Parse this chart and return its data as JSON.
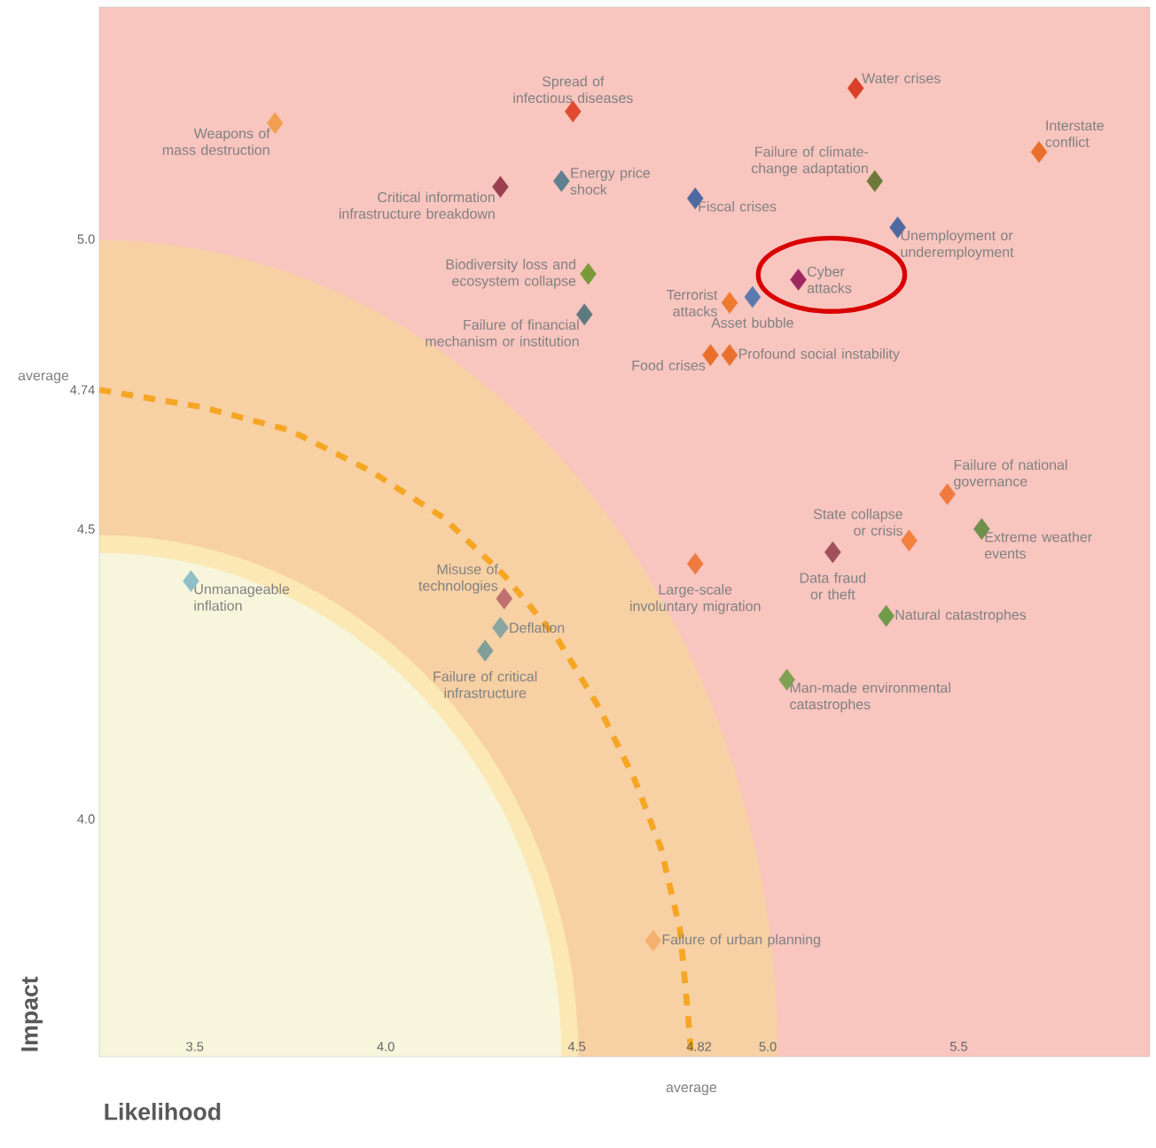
{
  "chart_data": {
    "type": "scatter",
    "xlabel": "Likelihood",
    "ylabel": "Impact",
    "x": [
      3.71,
      4.49,
      5.23,
      5.71,
      5.28,
      4.3,
      4.46,
      4.81,
      5.34,
      4.53,
      5.08,
      4.9,
      4.96,
      4.52,
      4.85,
      4.9,
      5.47,
      5.37,
      5.56,
      4.81,
      5.17,
      5.31,
      5.05,
      3.49,
      4.31,
      4.3,
      4.26,
      4.7
    ],
    "values": [
      5.2,
      5.22,
      5.26,
      5.15,
      5.1,
      5.09,
      5.1,
      5.07,
      5.02,
      4.94,
      4.93,
      4.89,
      4.9,
      4.87,
      4.8,
      4.8,
      4.56,
      4.48,
      4.5,
      4.44,
      4.46,
      4.35,
      4.24,
      4.41,
      4.38,
      4.33,
      4.29,
      3.79
    ],
    "colors": [
      "#f0a050",
      "#e04a30",
      "#d84028",
      "#e8702a",
      "#6b7a3a",
      "#9a4050",
      "#5f8090",
      "#4e6aa0",
      "#4e6aa0",
      "#7a9a3a",
      "#a02860",
      "#ee7a30",
      "#5a7ab0",
      "#5e7a80",
      "#e8702a",
      "#e87030",
      "#ee7a40",
      "#f28040",
      "#6f8f4a",
      "#ee7a40",
      "#a05058",
      "#6f9a4a",
      "#7fa050",
      "#8fc0c8",
      "#c07070",
      "#8aa6a0",
      "#7f9f98",
      "#f5b070"
    ],
    "marker": "diamond",
    "xlim": [
      3.25,
      6.0
    ],
    "ylim": [
      3.59,
      5.4
    ],
    "xticks": [
      3.5,
      {
        "value": 4.0,
        "label": "4.0"
      },
      4.5,
      4.82,
      {
        "value": 5.0,
        "label": "5.0"
      },
      5.5
    ],
    "yticks": [
      {
        "value": 4.0,
        "label": "4.0"
      },
      4.5,
      4.74,
      {
        "value": 5.0,
        "label": "5.0"
      }
    ],
    "series": [
      {
        "type": "line",
        "color": "#f5a623",
        "line_style": "dashed",
        "marker": "none",
        "x": [
          3.25,
          3.52,
          3.75,
          3.96,
          4.15,
          4.31,
          4.45,
          4.56,
          4.65,
          4.72,
          4.77,
          4.79,
          4.8
        ],
        "values": [
          4.74,
          4.71,
          4.67,
          4.6,
          4.52,
          4.42,
          4.31,
          4.19,
          4.07,
          3.95,
          3.81,
          3.67,
          3.59
        ]
      }
    ],
    "annotations": [
      {
        "text": "Weapons of mass destruction",
        "x": 3.71,
        "y": 5.2
      },
      {
        "text": "Spread of infectious diseases",
        "x": 4.49,
        "y": 5.22
      },
      {
        "text": "Water crises",
        "x": 5.23,
        "y": 5.26
      },
      {
        "text": "Interstate conflict",
        "x": 5.71,
        "y": 5.15
      },
      {
        "text": "Failure of climate-change adaptation",
        "x": 5.28,
        "y": 5.1
      },
      {
        "text": "Critical information infrastructure breakdown",
        "x": 4.3,
        "y": 5.09
      },
      {
        "text": "Energy price shock",
        "x": 4.46,
        "y": 5.1
      },
      {
        "text": "Fiscal crises",
        "x": 4.81,
        "y": 5.07
      },
      {
        "text": "Unemployment or underemployment",
        "x": 5.34,
        "y": 5.02
      },
      {
        "text": "Biodiversity loss and ecosystem collapse",
        "x": 4.53,
        "y": 4.94
      },
      {
        "text": "Cyber attacks",
        "x": 5.08,
        "y": 4.93
      },
      {
        "text": "Terrorist attacks",
        "x": 4.9,
        "y": 4.89
      },
      {
        "text": "Asset bubble",
        "x": 4.96,
        "y": 4.9
      },
      {
        "text": "Failure of financial mechanism or institution",
        "x": 4.52,
        "y": 4.87
      },
      {
        "text": "Food crises",
        "x": 4.85,
        "y": 4.8
      },
      {
        "text": "Profound social instability",
        "x": 4.9,
        "y": 4.8
      },
      {
        "text": "Failure of national governance",
        "x": 5.47,
        "y": 4.56
      },
      {
        "text": "State collapse or crisis",
        "x": 5.37,
        "y": 4.48
      },
      {
        "text": "Extreme weather events",
        "x": 5.56,
        "y": 4.5
      },
      {
        "text": "Large-scale involuntary migration",
        "x": 4.81,
        "y": 4.44
      },
      {
        "text": "Data fraud or theft",
        "x": 5.17,
        "y": 4.46
      },
      {
        "text": "Natural catastrophes",
        "x": 5.31,
        "y": 4.35
      },
      {
        "text": "Man-made environmental catastrophes",
        "x": 5.05,
        "y": 4.24
      },
      {
        "text": "Unmanageable inflation",
        "x": 3.49,
        "y": 4.41
      },
      {
        "text": "Misuse of technologies",
        "x": 4.31,
        "y": 4.38
      },
      {
        "text": "Deflation",
        "x": 4.3,
        "y": 4.33
      },
      {
        "text": "Failure of critical infrastructure",
        "x": 4.26,
        "y": 4.29
      },
      {
        "text": "Failure of urban planning",
        "x": 4.7,
        "y": 3.79
      },
      "average",
      "average"
    ]
  }
}
